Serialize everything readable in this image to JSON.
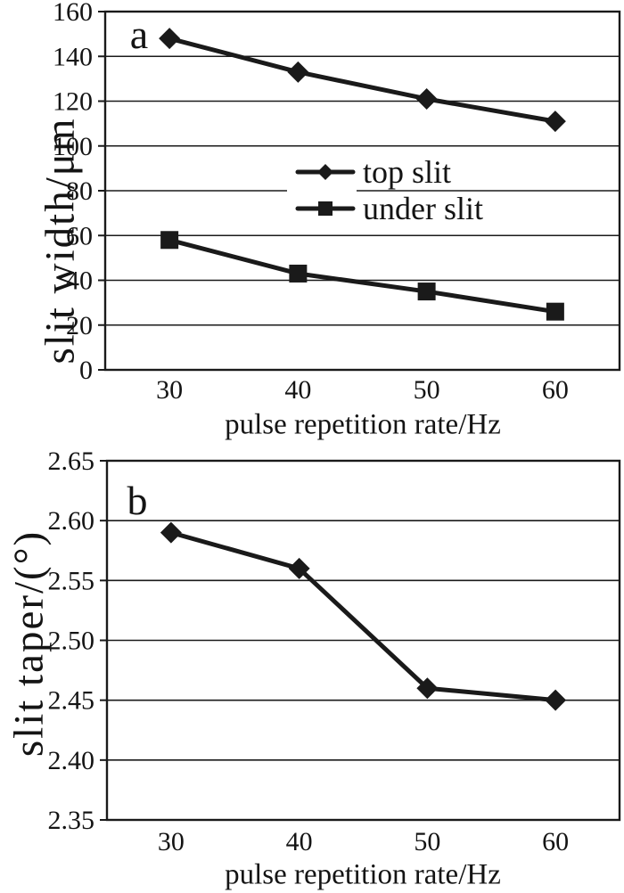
{
  "figure": {
    "background": "#ffffff",
    "ink_color": "#1a1a1a"
  },
  "chart_data": [
    {
      "type": "line",
      "panel_label": "a",
      "xlabel": "pulse repetition rate/Hz",
      "ylabel": "slit width/μm",
      "x_categories": [
        30,
        40,
        50,
        60
      ],
      "xticks": [
        "30",
        "40",
        "50",
        "60"
      ],
      "ylim": [
        0,
        160
      ],
      "ytick_values": [
        160,
        140,
        120,
        100,
        80,
        60,
        40,
        20,
        0
      ],
      "yticks": [
        "160",
        "140",
        "120",
        "100",
        "80",
        "60",
        "40",
        "20",
        "0"
      ],
      "grid": "horizontal",
      "legend": {
        "visible": true,
        "position": "inside-center",
        "entries": [
          "top slit",
          "under slit"
        ]
      },
      "series": [
        {
          "name": "top slit",
          "marker": "diamond",
          "values": [
            148,
            133,
            121,
            111
          ]
        },
        {
          "name": "under slit",
          "marker": "square",
          "values": [
            58,
            43,
            35,
            26
          ]
        }
      ]
    },
    {
      "type": "line",
      "panel_label": "b",
      "xlabel": "pulse repetition rate/Hz",
      "ylabel": "slit taper/(°)",
      "x_categories": [
        30,
        40,
        50,
        60
      ],
      "xticks": [
        "30",
        "40",
        "50",
        "60"
      ],
      "ylim": [
        2.35,
        2.65
      ],
      "ytick_values": [
        2.65,
        2.6,
        2.55,
        2.5,
        2.45,
        2.4,
        2.35
      ],
      "yticks": [
        "2.65",
        "2.60",
        "2.55",
        "2.50",
        "2.45",
        "2.40",
        "2.35"
      ],
      "grid": "horizontal",
      "legend": {
        "visible": false
      },
      "series": [
        {
          "name": "slit taper",
          "marker": "diamond",
          "values": [
            2.59,
            2.56,
            2.46,
            2.45
          ]
        }
      ]
    }
  ]
}
